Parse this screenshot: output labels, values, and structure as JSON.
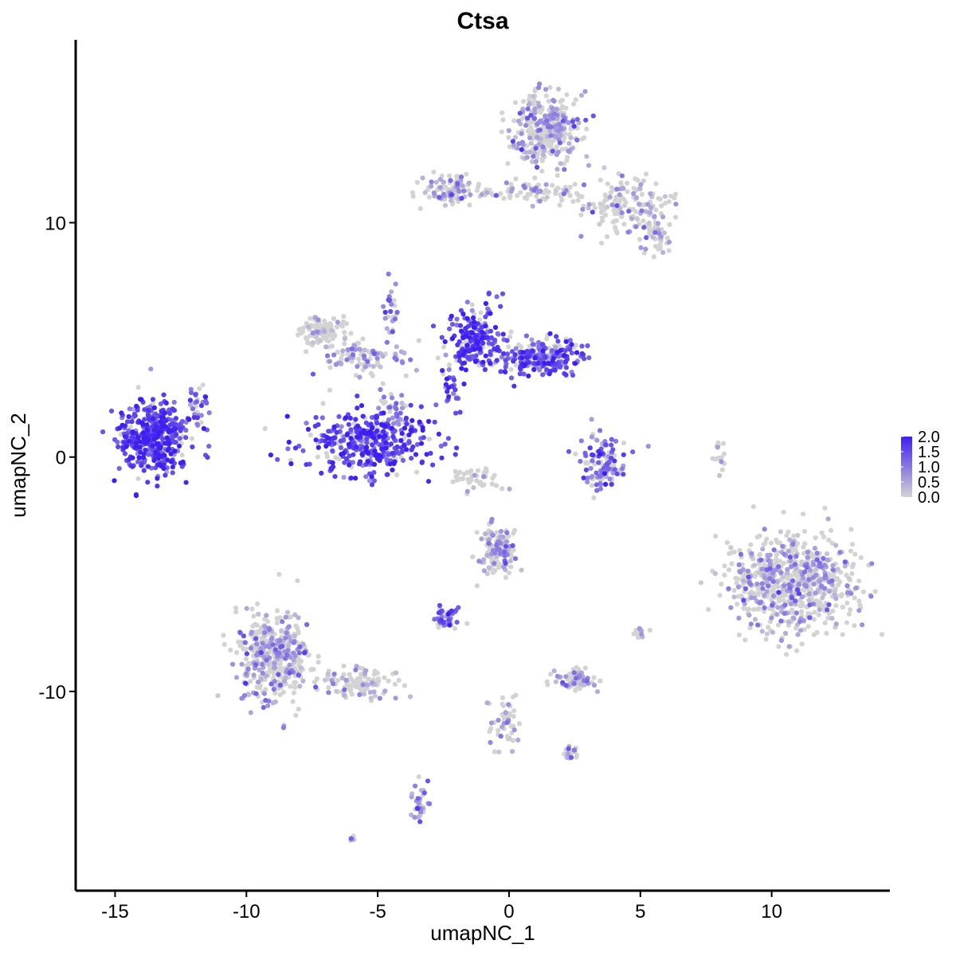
{
  "chart_data": {
    "type": "scatter",
    "title": "Ctsa",
    "xlabel": "umapNC_1",
    "ylabel": "umapNC_2",
    "xlim": [
      -16.5,
      14.5
    ],
    "ylim": [
      -18.5,
      17.8
    ],
    "xticks": [
      -15,
      -10,
      -5,
      0,
      5,
      10
    ],
    "yticks": [
      10,
      0,
      -10
    ],
    "xtick_labels": [
      "-15",
      "-10",
      "-5",
      "0",
      "5",
      "10"
    ],
    "ytick_labels": [
      "10",
      "0",
      "-10"
    ],
    "grid": false,
    "colors": {
      "low": "#d3d3d3",
      "high": "#3f1ff0"
    },
    "legend": {
      "position": "right",
      "min": 0.0,
      "max": 2.0,
      "labels": [
        "2.0",
        "1.5",
        "1.0",
        "0.5",
        "0.0"
      ]
    },
    "clusters": [
      {
        "name": "c1",
        "cx": -13.5,
        "cy": 0.9,
        "sx": 0.9,
        "sy": 1.0,
        "n": 420,
        "expr": 1.55
      },
      {
        "name": "c1b",
        "cx": -11.8,
        "cy": 2.2,
        "sx": 0.3,
        "sy": 0.5,
        "n": 30,
        "expr": 1.3
      },
      {
        "name": "c2",
        "cx": -5.3,
        "cy": 0.6,
        "sx": 1.6,
        "sy": 0.9,
        "n": 380,
        "expr": 1.55
      },
      {
        "name": "c3a",
        "cx": -7.2,
        "cy": 5.4,
        "sx": 0.6,
        "sy": 0.4,
        "n": 120,
        "expr": 0.1
      },
      {
        "name": "c3b",
        "cx": -5.5,
        "cy": 4.2,
        "sx": 1.1,
        "sy": 0.5,
        "n": 90,
        "expr": 0.6
      },
      {
        "name": "c3c",
        "cx": -4.5,
        "cy": 6.3,
        "sx": 0.25,
        "sy": 0.8,
        "n": 25,
        "expr": 1.2
      },
      {
        "name": "c3d",
        "cx": -4.4,
        "cy": 2.0,
        "sx": 0.35,
        "sy": 0.6,
        "n": 25,
        "expr": 0.8
      },
      {
        "name": "c4a",
        "cx": -1.3,
        "cy": 5.0,
        "sx": 0.7,
        "sy": 0.9,
        "n": 200,
        "expr": 1.5
      },
      {
        "name": "c4b",
        "cx": 1.2,
        "cy": 4.3,
        "sx": 1.2,
        "sy": 0.5,
        "n": 220,
        "expr": 1.35
      },
      {
        "name": "c4c",
        "cx": -2.2,
        "cy": 3.0,
        "sx": 0.25,
        "sy": 0.6,
        "n": 25,
        "expr": 1.6
      },
      {
        "name": "c5",
        "cx": 3.6,
        "cy": -0.3,
        "sx": 0.6,
        "sy": 0.8,
        "n": 110,
        "expr": 1.1
      },
      {
        "name": "c5b",
        "cx": -1.2,
        "cy": -1.0,
        "sx": 0.7,
        "sy": 0.35,
        "n": 40,
        "expr": 0.05
      },
      {
        "name": "c6",
        "cx": 1.4,
        "cy": 14.0,
        "sx": 0.8,
        "sy": 1.0,
        "n": 340,
        "expr": 0.55
      },
      {
        "name": "c6b",
        "cx": -2.2,
        "cy": 11.4,
        "sx": 0.7,
        "sy": 0.4,
        "n": 110,
        "expr": 0.45
      },
      {
        "name": "c6c",
        "cx": 0.8,
        "cy": 11.3,
        "sx": 1.4,
        "sy": 0.35,
        "n": 80,
        "expr": 0.35
      },
      {
        "name": "c6d",
        "cx": 4.5,
        "cy": 10.8,
        "sx": 1.0,
        "sy": 0.9,
        "n": 140,
        "expr": 0.35
      },
      {
        "name": "c6e",
        "cx": 5.6,
        "cy": 9.5,
        "sx": 0.4,
        "sy": 0.7,
        "n": 50,
        "expr": 0.5
      },
      {
        "name": "c7",
        "cx": 10.8,
        "cy": -5.3,
        "sx": 1.6,
        "sy": 1.4,
        "n": 720,
        "expr": 0.45
      },
      {
        "name": "c8",
        "cx": -9.0,
        "cy": -8.5,
        "sx": 0.9,
        "sy": 1.3,
        "n": 420,
        "expr": 0.55
      },
      {
        "name": "c8b",
        "cx": -5.8,
        "cy": -9.6,
        "sx": 1.0,
        "sy": 0.4,
        "n": 120,
        "expr": 0.35
      },
      {
        "name": "c9",
        "cx": -0.5,
        "cy": -4.0,
        "sx": 0.5,
        "sy": 0.7,
        "n": 130,
        "expr": 0.5
      },
      {
        "name": "c9b",
        "cx": -2.4,
        "cy": -6.9,
        "sx": 0.25,
        "sy": 0.3,
        "n": 45,
        "expr": 1.2
      },
      {
        "name": "c10",
        "cx": 2.5,
        "cy": -9.5,
        "sx": 0.5,
        "sy": 0.3,
        "n": 90,
        "expr": 0.45
      },
      {
        "name": "c11",
        "cx": -0.2,
        "cy": -11.3,
        "sx": 0.4,
        "sy": 0.8,
        "n": 50,
        "expr": 0.5
      },
      {
        "name": "c11b",
        "cx": 2.3,
        "cy": -12.6,
        "sx": 0.2,
        "sy": 0.2,
        "n": 20,
        "expr": 0.8
      },
      {
        "name": "c12",
        "cx": -3.4,
        "cy": -14.8,
        "sx": 0.2,
        "sy": 0.6,
        "n": 35,
        "expr": 0.7
      },
      {
        "name": "c13",
        "cx": 8.0,
        "cy": 0.0,
        "sx": 0.15,
        "sy": 0.6,
        "n": 15,
        "expr": 0.0
      },
      {
        "name": "c14",
        "cx": 5.0,
        "cy": -7.5,
        "sx": 0.2,
        "sy": 0.25,
        "n": 15,
        "expr": 0.5
      },
      {
        "name": "c15",
        "cx": -6.0,
        "cy": -16.3,
        "sx": 0.1,
        "sy": 0.1,
        "n": 6,
        "expr": 0.9
      }
    ]
  }
}
